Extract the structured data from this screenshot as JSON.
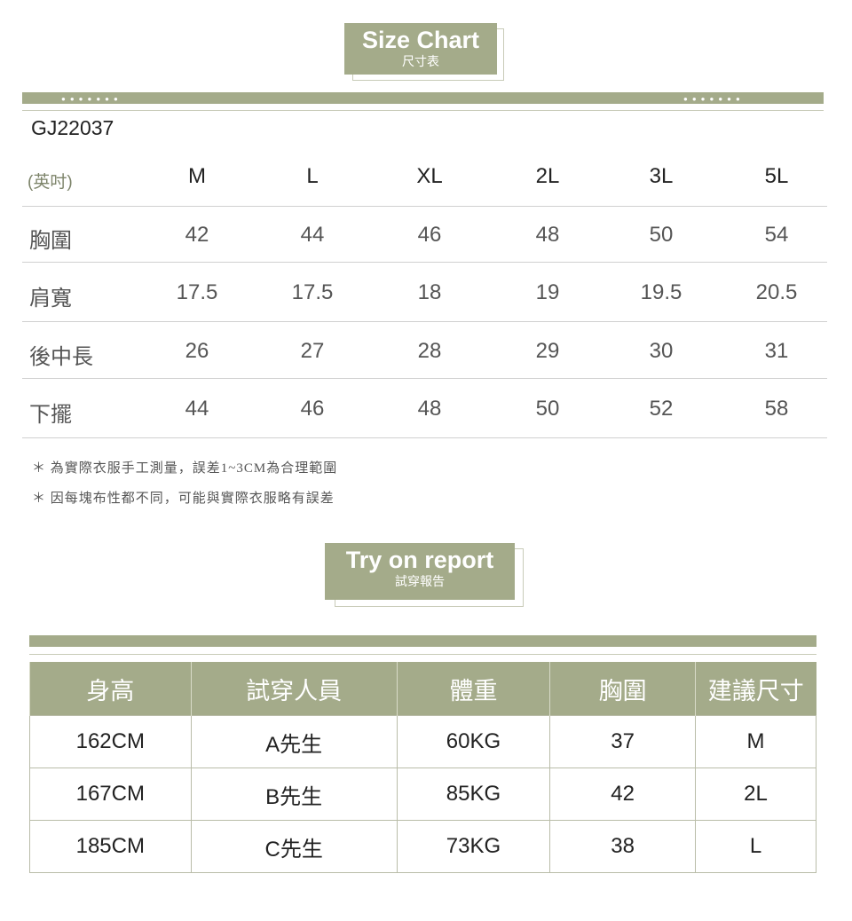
{
  "size_chart": {
    "title": "Size Chart",
    "subtitle": "尺寸表",
    "code": "GJ22037",
    "unit": "(英吋)",
    "sizes": [
      "M",
      "L",
      "XL",
      "2L",
      "3L",
      "5L"
    ],
    "rows": [
      {
        "label": "胸圍",
        "values": [
          "42",
          "44",
          "46",
          "48",
          "50",
          "54"
        ]
      },
      {
        "label": "肩寬",
        "values": [
          "17.5",
          "17.5",
          "18",
          "19",
          "19.5",
          "20.5"
        ]
      },
      {
        "label": "後中長",
        "values": [
          "26",
          "27",
          "28",
          "29",
          "30",
          "31"
        ]
      },
      {
        "label": "下擺",
        "values": [
          "44",
          "46",
          "48",
          "50",
          "52",
          "58"
        ]
      }
    ],
    "notes": [
      "＊ 為實際衣服手工測量，誤差1~3CM為合理範圍",
      "＊ 因每塊布性都不同，可能與實際衣服略有誤差"
    ]
  },
  "try_on": {
    "title": "Try on report",
    "subtitle": "試穿報告",
    "headers": [
      "身高",
      "試穿人員",
      "體重",
      "胸圍",
      "建議尺寸"
    ],
    "rows": [
      [
        "162CM",
        "A先生",
        "60KG",
        "37",
        "M"
      ],
      [
        "167CM",
        "B先生",
        "85KG",
        "42",
        "2L"
      ],
      [
        "185CM",
        "C先生",
        "73KG",
        "38",
        "L"
      ]
    ]
  },
  "colors": {
    "accent": "#a4ab8a"
  }
}
